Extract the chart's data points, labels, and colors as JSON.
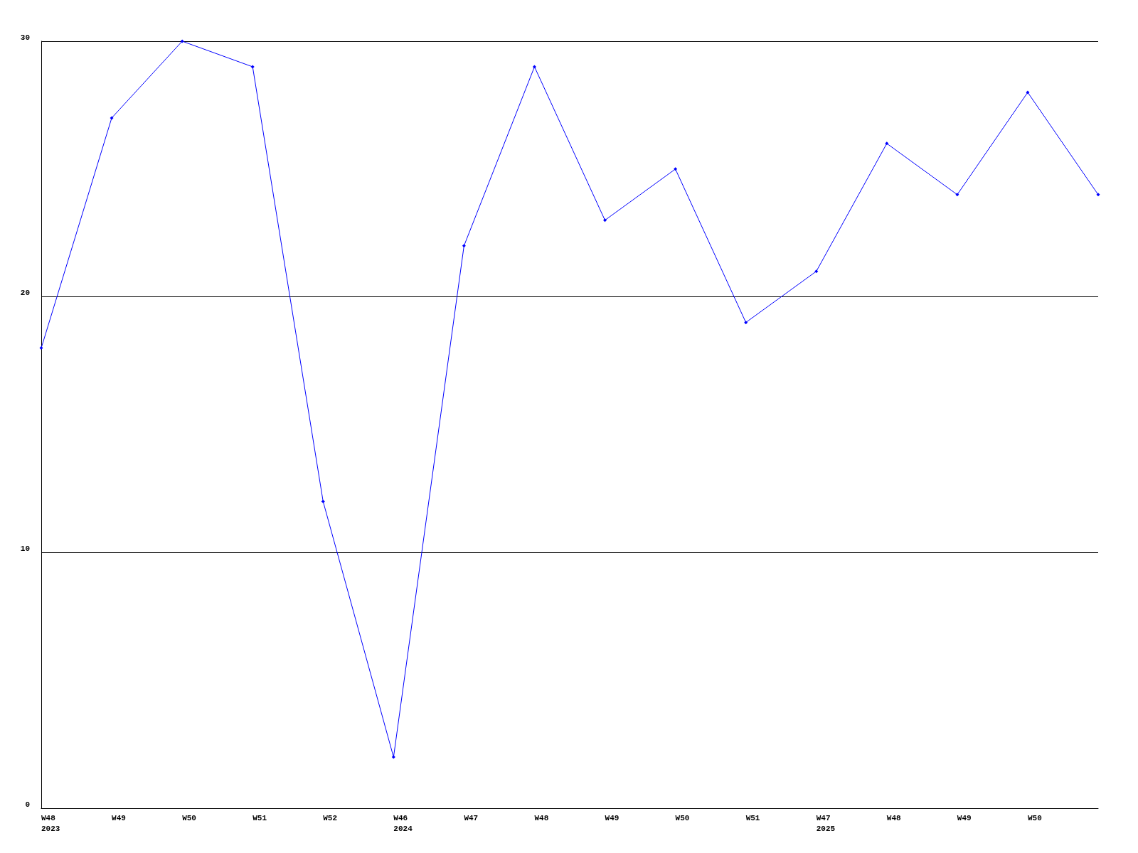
{
  "chart_data": {
    "type": "line",
    "categories": [
      "W48\n2023",
      "W49",
      "W50",
      "W51",
      "W52",
      "W46\n2024",
      "W47",
      "W48",
      "W49",
      "W50",
      "W51",
      "W47\n2025",
      "W48",
      "W49",
      "W50",
      null
    ],
    "series": [
      {
        "color": "#0000ff",
        "values": [
          18,
          27,
          30,
          29,
          12,
          2,
          22,
          29,
          23,
          25,
          19,
          21,
          26,
          24,
          28,
          24
        ]
      }
    ],
    "ylim": [
      0,
      30
    ],
    "yticks": [
      0,
      10,
      20,
      30
    ],
    "grid": "y",
    "marker": "diamond",
    "line_style": "solid"
  }
}
